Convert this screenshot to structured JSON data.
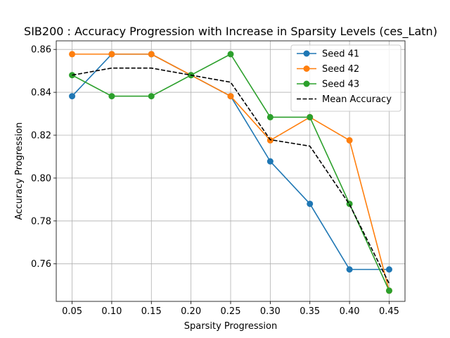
{
  "chart_data": {
    "type": "line",
    "title": "SIB200 : Accuracy Progression with Increase in Sparsity Levels (ces_Latn)",
    "xlabel": "Sparsity Progression",
    "ylabel": "Accuracy Progression",
    "x": [
      0.05,
      0.1,
      0.15,
      0.2,
      0.25,
      0.3,
      0.35,
      0.4,
      0.45
    ],
    "x_tick_labels": [
      "0.05",
      "0.10",
      "0.15",
      "0.20",
      "0.25",
      "0.30",
      "0.35",
      "0.40",
      "0.45"
    ],
    "y_ticks": [
      0.76,
      0.78,
      0.8,
      0.82,
      0.84,
      0.86
    ],
    "y_tick_labels": [
      "0.76",
      "0.78",
      "0.80",
      "0.82",
      "0.84",
      "0.86"
    ],
    "xlim": [
      0.03,
      0.47
    ],
    "ylim": [
      0.7425,
      0.864
    ],
    "grid": true,
    "legend_position": "top-right",
    "series": [
      {
        "name": "Seed 41",
        "color": "#1f77b4",
        "style": "solid",
        "marker": "circle",
        "values": [
          0.8382,
          0.8578,
          0.8578,
          0.848,
          0.8382,
          0.8078,
          0.788,
          0.7574,
          0.7574
        ]
      },
      {
        "name": "Seed 42",
        "color": "#ff7f0e",
        "style": "solid",
        "marker": "circle",
        "values": [
          0.8578,
          0.8578,
          0.8578,
          0.848,
          0.8382,
          0.8176,
          0.8284,
          0.8176,
          0.7475
        ]
      },
      {
        "name": "Seed 43",
        "color": "#2ca02c",
        "style": "solid",
        "marker": "circle",
        "values": [
          0.848,
          0.8382,
          0.8382,
          0.848,
          0.8578,
          0.8284,
          0.8284,
          0.788,
          0.7475
        ]
      },
      {
        "name": "Mean Accuracy",
        "color": "#000000",
        "style": "dashed",
        "marker": "none",
        "values": [
          0.848,
          0.8513,
          0.8513,
          0.848,
          0.8447,
          0.8179,
          0.8149,
          0.7877,
          0.7508
        ]
      }
    ]
  }
}
